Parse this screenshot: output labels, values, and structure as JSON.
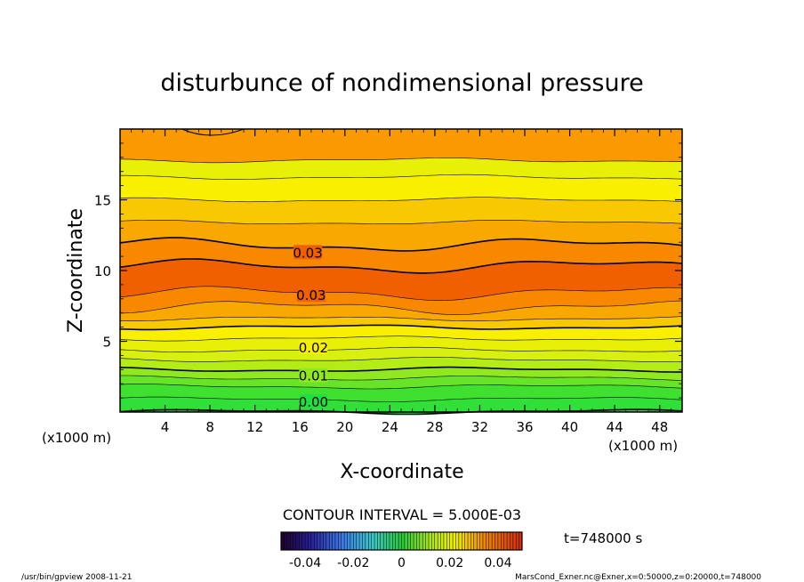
{
  "chart_data": {
    "type": "heatmap",
    "title": "disturbunce of nondimensional pressure",
    "xlabel": "X-coordinate",
    "ylabel": "Z-coordinate",
    "x_unit_left": "(x1000 m)",
    "x_unit_right": "(x1000 m)",
    "xlim": [
      0,
      50
    ],
    "ylim": [
      0,
      20
    ],
    "x_ticks": [
      "4",
      "8",
      "12",
      "16",
      "20",
      "24",
      "28",
      "32",
      "36",
      "40",
      "44",
      "48"
    ],
    "y_ticks": [
      "5",
      "10",
      "15"
    ],
    "x_tick_values": [
      4,
      8,
      12,
      16,
      20,
      24,
      28,
      32,
      36,
      40,
      44,
      48
    ],
    "y_tick_values": [
      5,
      10,
      15
    ],
    "z_levels": [
      0.02,
      0.9,
      1.8,
      2.4,
      3.0,
      3.7,
      4.4,
      5.2,
      6.0,
      6.6,
      7.4,
      8.4,
      10.3,
      11.8,
      13.4,
      15.0,
      16.6,
      17.8
    ],
    "level_values": [
      0.0,
      0.0025,
      0.005,
      0.0075,
      0.01,
      0.0125,
      0.015,
      0.0175,
      0.02,
      0.0225,
      0.025,
      0.0275,
      0.03,
      0.0275,
      0.025,
      0.0225,
      0.02,
      0.0175
    ],
    "contour_labels": [
      {
        "text": "0.03",
        "x": 16.7,
        "z": 11.3
      },
      {
        "text": "0.03",
        "x": 17.0,
        "z": 8.3
      },
      {
        "text": "0.02",
        "x": 17.2,
        "z": 4.6
      },
      {
        "text": "0.01",
        "x": 17.2,
        "z": 2.6
      },
      {
        "text": "0.00",
        "x": 17.2,
        "z": 0.75
      }
    ],
    "contour_interval_text": "CONTOUR INTERVAL = 5.000E-03",
    "time_text": "t=748000 s",
    "colorbar_ticks": [
      "-0.04",
      "-0.02",
      "0",
      "0.02",
      "0.04"
    ],
    "colorbar_tick_values": [
      -0.04,
      -0.02,
      0,
      0.02,
      0.04
    ],
    "colorbar_range": [
      -0.05,
      0.05
    ],
    "footer_left": "/usr/bin/gpview   2008-11-21",
    "footer_right": "MarsCond_Exner.nc@Exner,x=0:50000,z=0:20000,t=748000",
    "colors": {
      "low": "#28e040",
      "mid": "#f0f000",
      "high": "#f06000",
      "top": "#fa9800"
    }
  }
}
